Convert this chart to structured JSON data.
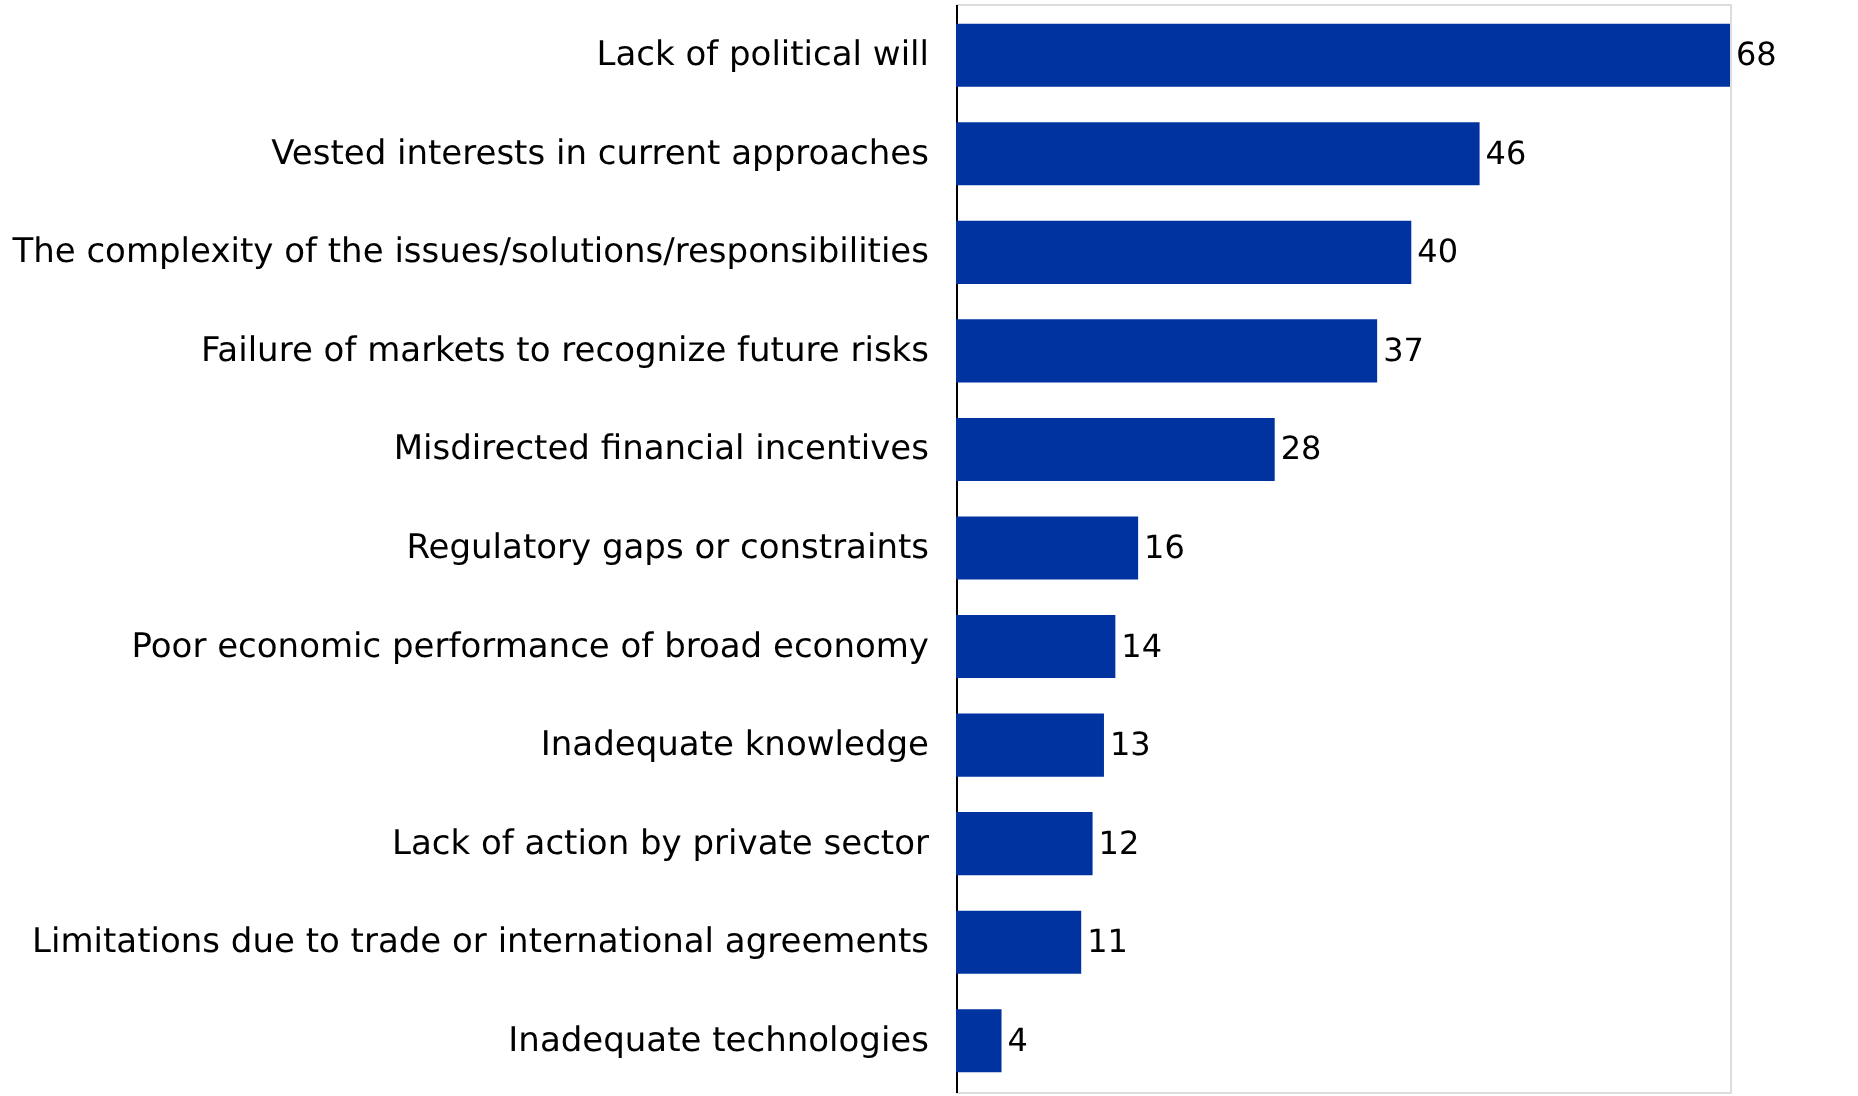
{
  "chart_data": {
    "type": "bar",
    "orientation": "horizontal",
    "categories": [
      "Lack of political will",
      "Vested interests in current approaches",
      "The complexity of the issues/solutions/responsibilities",
      "Failure of markets to recognize future risks",
      "Misdirected financial incentives",
      "Regulatory gaps or constraints",
      "Poor economic performance of broad economy",
      "Inadequate knowledge",
      "Lack of action by private sector",
      "Limitations due to trade or international agreements",
      "Inadequate technologies"
    ],
    "values": [
      68,
      46,
      40,
      37,
      28,
      16,
      14,
      13,
      12,
      11,
      4
    ],
    "color": "#0033a0",
    "data_labels": true
  }
}
